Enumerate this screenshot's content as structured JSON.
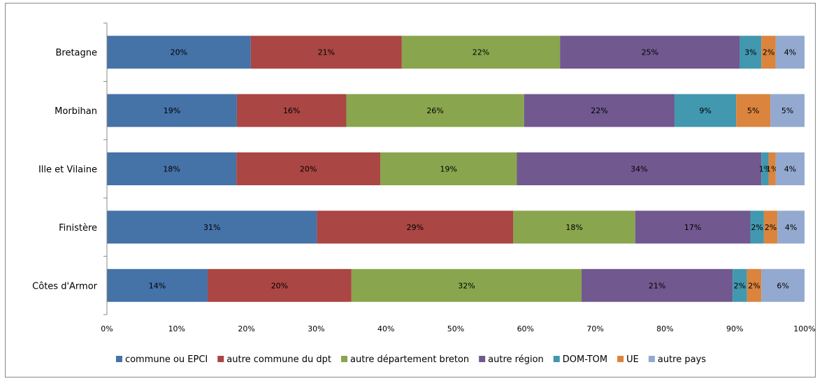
{
  "chart_data": {
    "type": "bar",
    "orientation": "horizontal",
    "stacked": "percent",
    "categories": [
      "Bretagne",
      "Morbihan",
      "Ille et Vilaine",
      "Finistère",
      "Côtes d'Armor"
    ],
    "series": [
      {
        "name": "commune ou EPCI",
        "color": "#4572A7",
        "values": [
          20,
          19,
          18,
          31,
          14
        ],
        "labels": [
          "20%",
          "19%",
          "18%",
          "31%",
          "14%"
        ]
      },
      {
        "name": "autre commune du dpt",
        "color": "#AA4643",
        "values": [
          21,
          16,
          20,
          29,
          20
        ],
        "labels": [
          "21%",
          "16%",
          "20%",
          "29%",
          "20%"
        ]
      },
      {
        "name": "autre département breton",
        "color": "#89A54E",
        "values": [
          22,
          26,
          19,
          18,
          32
        ],
        "labels": [
          "22%",
          "26%",
          "19%",
          "18%",
          "32%"
        ]
      },
      {
        "name": "autre région",
        "color": "#71588F",
        "values": [
          25,
          22,
          34,
          17,
          21
        ],
        "labels": [
          "25%",
          "22%",
          "34%",
          "17%",
          "21%"
        ]
      },
      {
        "name": "DOM-TOM",
        "color": "#4198AF",
        "values": [
          3,
          9,
          1,
          2,
          2
        ],
        "labels": [
          "3%",
          "9%",
          "1%",
          "2%",
          "2%"
        ]
      },
      {
        "name": "UE",
        "color": "#DB843D",
        "values": [
          2,
          5,
          1,
          2,
          2
        ],
        "labels": [
          "2%",
          "5%",
          "1%",
          "2%",
          "2%"
        ]
      },
      {
        "name": "autre pays",
        "color": "#93A9CF",
        "values": [
          4,
          5,
          4,
          4,
          6
        ],
        "labels": [
          "4%",
          "5%",
          "4%",
          "4%",
          "6%"
        ]
      }
    ],
    "xlim": [
      0,
      100
    ],
    "x_ticks": [
      "0%",
      "10%",
      "20%",
      "30%",
      "40%",
      "50%",
      "60%",
      "70%",
      "80%",
      "90%",
      "100%"
    ],
    "grid": false,
    "legend_position": "bottom"
  }
}
